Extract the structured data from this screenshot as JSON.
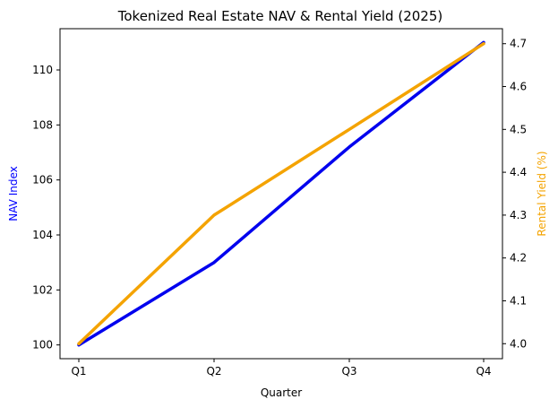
{
  "chart_data": {
    "type": "line",
    "title": "Tokenized Real Estate NAV & Rental Yield (2025)",
    "xlabel": "Quarter",
    "categories": [
      "Q1",
      "Q2",
      "Q3",
      "Q4"
    ],
    "grid": false,
    "y_left": {
      "label": "NAV Index",
      "label_color": "#0000ff",
      "ylim": [
        99.5,
        111.5
      ],
      "ticks": [
        100,
        102,
        104,
        106,
        108,
        110
      ]
    },
    "y_right": {
      "label": "Rental Yield (%)",
      "label_color": "#f4a300",
      "ylim": [
        3.965,
        4.735
      ],
      "ticks": [
        4.0,
        4.1,
        4.2,
        4.3,
        4.4,
        4.5,
        4.6,
        4.7
      ]
    },
    "series": [
      {
        "axis": "left",
        "color": "#0000ee",
        "values": [
          100,
          103,
          107.2,
          111
        ]
      },
      {
        "axis": "right",
        "color": "#f4a300",
        "values": [
          4.0,
          4.3,
          4.5,
          4.7
        ]
      }
    ]
  }
}
